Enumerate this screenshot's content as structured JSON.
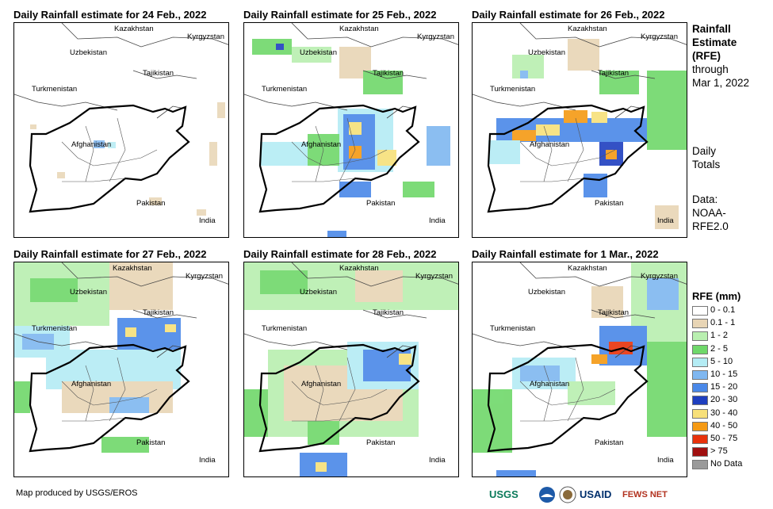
{
  "panels": [
    {
      "title": "Daily Rainfall estimate for 24 Feb., 2022"
    },
    {
      "title": "Daily Rainfall estimate for 25 Feb., 2022"
    },
    {
      "title": "Daily Rainfall estimate for 26 Feb., 2022"
    },
    {
      "title": "Daily Rainfall estimate for 27 Feb., 2022"
    },
    {
      "title": "Daily Rainfall estimate for 28 Feb., 2022"
    },
    {
      "title": "Daily Rainfall estimate for 1 Mar., 2022"
    }
  ],
  "countries": {
    "kazakhstan": "Kazakhstan",
    "kyrgyzstan": "Kyrgyzstan",
    "uzbekistan": "Uzbekistan",
    "tajikistan": "Tajikistan",
    "turkmenistan": "Turkmenistan",
    "afghanistan": "Afghanistan",
    "pakistan": "Pakistan",
    "india": "India"
  },
  "sidebar": {
    "title_line1": "Rainfall",
    "title_line2": "Estimate",
    "title_line3": "(RFE)",
    "through": "through",
    "date": "Mar 1, 2022",
    "daily1": "Daily",
    "daily2": "Totals",
    "data1": "Data:",
    "data2": "NOAA-",
    "data3": "RFE2.0"
  },
  "legend": {
    "title": "RFE (mm)",
    "items": [
      {
        "label": "0 - 0.1",
        "color": "#ffffff"
      },
      {
        "label": "0.1 - 1",
        "color": "#e8d5b5"
      },
      {
        "label": "1 - 2",
        "color": "#b9efb0"
      },
      {
        "label": "2 - 5",
        "color": "#6fd86a"
      },
      {
        "label": "5 - 10",
        "color": "#b4ecf4"
      },
      {
        "label": "10 - 15",
        "color": "#7fb7f0"
      },
      {
        "label": "15 - 20",
        "color": "#4a88e8"
      },
      {
        "label": "20 - 30",
        "color": "#1f3fbf"
      },
      {
        "label": "30 - 40",
        "color": "#f7e07a"
      },
      {
        "label": "40 - 50",
        "color": "#f59a14"
      },
      {
        "label": "50 - 75",
        "color": "#e8320c"
      },
      {
        "label": "> 75",
        "color": "#a01010"
      },
      {
        "label": "No Data",
        "color": "#9a9a9a"
      }
    ]
  },
  "credit": "Map produced by USGS/EROS",
  "logos": {
    "usgs": "USGS",
    "usaid": "USAID",
    "fewsnet": "FEWS NET"
  }
}
